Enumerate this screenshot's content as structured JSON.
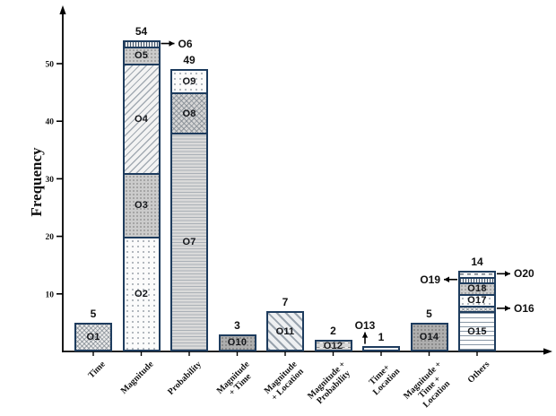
{
  "chart_data": {
    "type": "bar",
    "stacked": true,
    "ylabel": "Frequency",
    "yticks": [
      10,
      20,
      30,
      40,
      50
    ],
    "ylim": [
      0,
      58
    ],
    "grid": false,
    "legend": "none",
    "colors": {
      "bar_border": "#1e3c5e",
      "axis": "#000000",
      "fill_base": "#e8e8e8"
    },
    "categories": [
      "Time",
      "Magnitude",
      "Probability",
      "Magnitude + Time",
      "Magnitude + Location",
      "Magnitude + Probability",
      "Time+ Location",
      "Magnitude + Time + Location",
      "Others"
    ],
    "category_label_lines": [
      [
        "Time"
      ],
      [
        "Magnitude"
      ],
      [
        "Probability"
      ],
      [
        "Magnitude",
        "+ Time"
      ],
      [
        "Magnitude",
        "+ Location"
      ],
      [
        "Magnitude +",
        "Probability"
      ],
      [
        "Time+",
        "Location"
      ],
      [
        "Magnitude +",
        "Time +",
        "Location"
      ],
      [
        "Others"
      ]
    ],
    "totals": [
      5,
      54,
      49,
      3,
      7,
      2,
      1,
      5,
      14
    ],
    "bars": [
      {
        "category": "Time",
        "total": 5,
        "segments": [
          {
            "label": "O1",
            "value": 5,
            "pattern": "crosshatch-fine",
            "label_inside": true
          }
        ]
      },
      {
        "category": "Magnitude",
        "total": 54,
        "segments": [
          {
            "label": "O2",
            "value": 20,
            "pattern": "dots-light",
            "label_inside": true
          },
          {
            "label": "O3",
            "value": 11,
            "pattern": "dots-gray",
            "label_inside": true
          },
          {
            "label": "O4",
            "value": 19,
            "pattern": "diag-up",
            "label_inside": true
          },
          {
            "label": "O5",
            "value": 3,
            "pattern": "dots-gray",
            "label_inside": true
          },
          {
            "label": "O6",
            "value": 1,
            "pattern": "vert-lines",
            "label_inside": false,
            "annotation": "right"
          }
        ]
      },
      {
        "category": "Probability",
        "total": 49,
        "segments": [
          {
            "label": "O7",
            "value": 38,
            "pattern": "horiz-dense",
            "label_inside": true
          },
          {
            "label": "O8",
            "value": 7,
            "pattern": "crosshatch",
            "label_inside": true
          },
          {
            "label": "O9",
            "value": 4,
            "pattern": "dots-light",
            "label_inside": true
          }
        ]
      },
      {
        "category": "Magnitude + Time",
        "total": 3,
        "segments": [
          {
            "label": "O10",
            "value": 3,
            "pattern": "dots-dark",
            "label_inside": true
          }
        ]
      },
      {
        "category": "Magnitude + Location",
        "total": 7,
        "segments": [
          {
            "label": "O11",
            "value": 7,
            "pattern": "diag-down",
            "label_inside": true
          }
        ]
      },
      {
        "category": "Magnitude + Probability",
        "total": 2,
        "segments": [
          {
            "label": "O12",
            "value": 2,
            "pattern": "dash-gray",
            "label_inside": true
          }
        ]
      },
      {
        "category": "Time+ Location",
        "total": 1,
        "segments": [
          {
            "label": "O13",
            "value": 1,
            "pattern": "dash-white",
            "label_inside": false,
            "annotation": "top"
          }
        ]
      },
      {
        "category": "Magnitude + Time + Location",
        "total": 5,
        "segments": [
          {
            "label": "O14",
            "value": 5,
            "pattern": "dots-dark",
            "label_inside": true
          }
        ]
      },
      {
        "category": "Others",
        "total": 14,
        "segments": [
          {
            "label": "O15",
            "value": 7,
            "pattern": "horiz-lines",
            "label_inside": true
          },
          {
            "label": "O16",
            "value": 1,
            "pattern": "crosshatch-fine",
            "label_inside": false,
            "annotation": "right"
          },
          {
            "label": "O17",
            "value": 2,
            "pattern": "dots-light",
            "label_inside": true
          },
          {
            "label": "O18",
            "value": 2,
            "pattern": "dots-gray",
            "label_inside": true
          },
          {
            "label": "O19",
            "value": 1,
            "pattern": "vert-lines",
            "label_inside": false,
            "annotation": "left"
          },
          {
            "label": "O20",
            "value": 1,
            "pattern": "dash-white",
            "label_inside": false,
            "annotation": "right"
          }
        ]
      }
    ]
  }
}
